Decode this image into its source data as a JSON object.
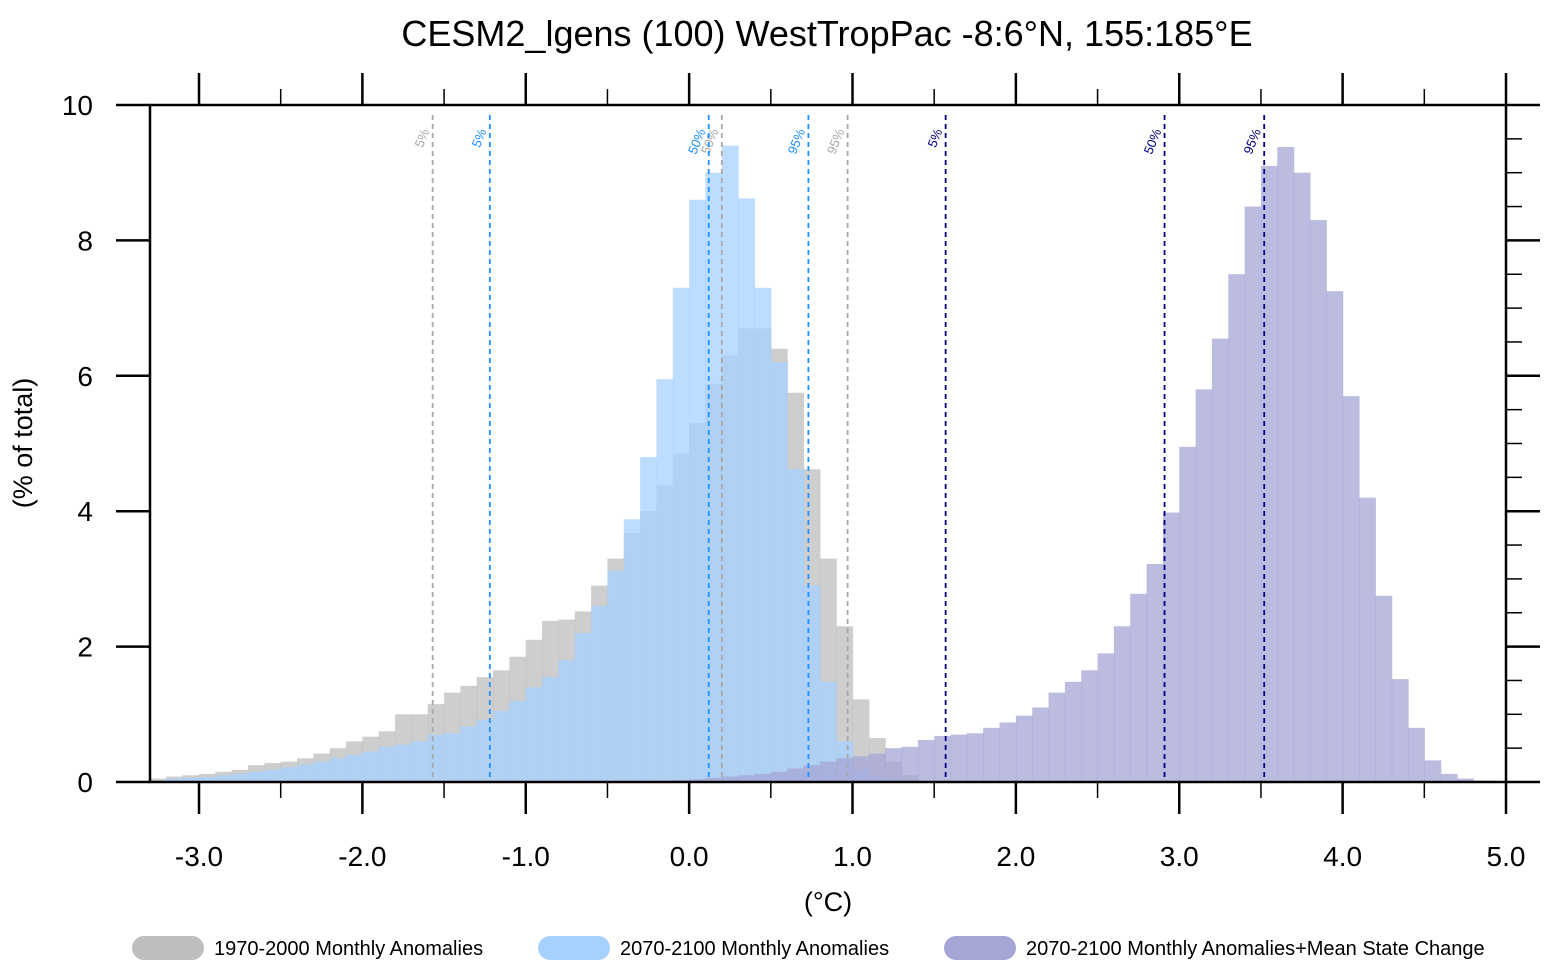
{
  "chart_data": {
    "type": "bar",
    "title": "CESM2_lgens (100) WestTropPac  -8:6°N, 155:185°E",
    "xlabel": "(°C)",
    "ylabel": "(% of total)",
    "xlim": [
      -3.3,
      5.0
    ],
    "ylim": [
      0,
      10
    ],
    "x_ticks": [
      -3.0,
      -2.0,
      -1.0,
      0.0,
      1.0,
      2.0,
      3.0,
      4.0,
      5.0
    ],
    "x_tick_labels": [
      "-3.0",
      "-2.0",
      "-1.0",
      "0.0",
      "1.0",
      "2.0",
      "3.0",
      "4.0",
      "5.0"
    ],
    "y_ticks": [
      0,
      2,
      4,
      6,
      8,
      10
    ],
    "y_tick_labels": [
      "0",
      "2",
      "4",
      "6",
      "8",
      "10"
    ],
    "bin_width": 0.1,
    "grid": false,
    "legend_position": "bottom",
    "series": [
      {
        "name": "1970-2000 Monthly Anomalies",
        "color": "#bebebe",
        "x_start": -3.3,
        "values": [
          0.05,
          0.08,
          0.1,
          0.12,
          0.15,
          0.18,
          0.25,
          0.28,
          0.3,
          0.35,
          0.42,
          0.5,
          0.6,
          0.67,
          0.75,
          1.0,
          1.0,
          1.15,
          1.32,
          1.42,
          1.55,
          1.65,
          1.85,
          2.1,
          2.38,
          2.4,
          2.52,
          2.9,
          3.3,
          3.68,
          4.0,
          4.38,
          4.85,
          5.3,
          5.88,
          6.3,
          6.7,
          6.7,
          6.4,
          5.75,
          4.62,
          3.3,
          2.3,
          1.22,
          0.65,
          0.3,
          0.1
        ]
      },
      {
        "name": "2070-2100 Monthly Anomalies",
        "color": "#a6d1ff",
        "x_start": -3.3,
        "values": [
          0.02,
          0.05,
          0.06,
          0.07,
          0.1,
          0.12,
          0.15,
          0.18,
          0.22,
          0.26,
          0.3,
          0.35,
          0.4,
          0.45,
          0.52,
          0.55,
          0.6,
          0.7,
          0.72,
          0.82,
          0.92,
          1.05,
          1.2,
          1.4,
          1.55,
          1.8,
          2.2,
          2.6,
          3.12,
          3.88,
          4.8,
          5.95,
          7.3,
          8.6,
          9.0,
          9.4,
          8.62,
          7.3,
          6.2,
          4.62,
          2.9,
          1.48,
          0.6,
          0.18,
          0.08,
          0.05
        ]
      },
      {
        "name": "2070-2100 Monthly Anomalies+Mean State Change",
        "color": "#a6a6d6",
        "x_start": -0.4,
        "values": [
          0.0,
          0.01,
          0.02,
          0.03,
          0.04,
          0.06,
          0.08,
          0.1,
          0.12,
          0.15,
          0.2,
          0.25,
          0.3,
          0.35,
          0.38,
          0.42,
          0.5,
          0.52,
          0.62,
          0.68,
          0.7,
          0.72,
          0.8,
          0.88,
          0.98,
          1.1,
          1.32,
          1.48,
          1.65,
          1.9,
          2.3,
          2.78,
          3.22,
          3.98,
          4.95,
          5.8,
          6.55,
          7.5,
          8.5,
          9.1,
          9.38,
          9.0,
          8.3,
          7.25,
          5.7,
          4.2,
          2.75,
          1.52,
          0.8,
          0.32,
          0.12,
          0.05,
          0.02
        ]
      }
    ],
    "percentile_lines": [
      {
        "label": "5%",
        "x": -1.57,
        "color": "#a8a8a8"
      },
      {
        "label": "50%",
        "x": 0.2,
        "color": "#a8a8a8"
      },
      {
        "label": "95%",
        "x": 0.97,
        "color": "#a8a8a8"
      },
      {
        "label": "5%",
        "x": -1.22,
        "color": "#1e90ff"
      },
      {
        "label": "50%",
        "x": 0.12,
        "color": "#1e90ff"
      },
      {
        "label": "95%",
        "x": 0.73,
        "color": "#1e90ff"
      },
      {
        "label": "5%",
        "x": 1.57,
        "color": "#000080"
      },
      {
        "label": "50%",
        "x": 2.91,
        "color": "#000080"
      },
      {
        "label": "95%",
        "x": 3.52,
        "color": "#000080"
      }
    ]
  }
}
